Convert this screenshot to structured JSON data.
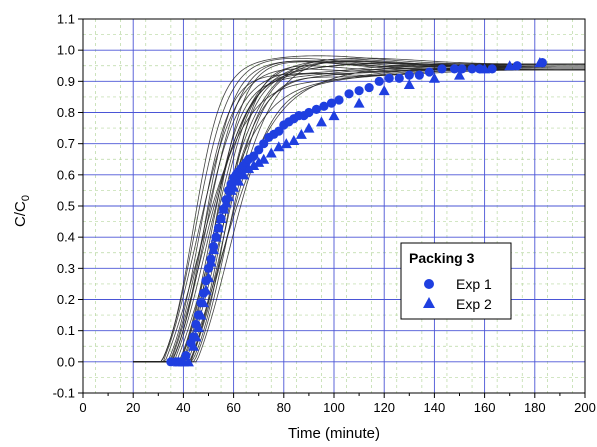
{
  "chart_data": {
    "type": "scatter",
    "title": "",
    "xlabel": "Time (minute)",
    "ylabel_base": "C/C",
    "ylabel_sub": "0",
    "xlim": [
      0,
      200
    ],
    "ylim": [
      -0.1,
      1.1
    ],
    "x_ticks": [
      0,
      20,
      40,
      60,
      80,
      100,
      120,
      140,
      160,
      180,
      200
    ],
    "y_ticks": [
      -0.1,
      0.0,
      0.1,
      0.2,
      0.3,
      0.4,
      0.5,
      0.6,
      0.7,
      0.8,
      0.9,
      1.0,
      1.1
    ],
    "grid": true,
    "legend": {
      "title": "Packing 3",
      "placement": "center-right"
    },
    "colors": {
      "markers": "#1f3fe0",
      "grid_major": "#4a55d6",
      "grid_minor": "#b7d7a0",
      "simulation_lines": "#222222"
    },
    "series": [
      {
        "name": "Exp 1",
        "marker": "circle",
        "x": [
          35,
          37,
          39,
          41,
          43,
          44,
          45,
          46,
          47,
          48,
          49,
          50,
          51,
          52,
          53,
          54,
          55,
          56,
          57,
          58,
          59,
          60,
          61,
          62,
          63,
          64,
          65,
          66,
          68,
          70,
          72,
          74,
          76,
          78,
          80,
          82,
          84,
          86,
          88,
          90,
          93,
          96,
          99,
          102,
          106,
          110,
          114,
          118,
          122,
          126,
          130,
          134,
          138,
          143,
          148,
          151,
          155,
          158,
          163,
          173,
          183
        ],
        "y": [
          0.0,
          0.0,
          0.0,
          0.02,
          0.06,
          0.08,
          0.12,
          0.15,
          0.19,
          0.22,
          0.26,
          0.3,
          0.33,
          0.37,
          0.4,
          0.43,
          0.46,
          0.49,
          0.52,
          0.55,
          0.57,
          0.59,
          0.6,
          0.61,
          0.62,
          0.63,
          0.64,
          0.65,
          0.66,
          0.68,
          0.7,
          0.72,
          0.73,
          0.74,
          0.76,
          0.77,
          0.78,
          0.79,
          0.79,
          0.8,
          0.81,
          0.82,
          0.83,
          0.84,
          0.86,
          0.87,
          0.88,
          0.9,
          0.91,
          0.91,
          0.92,
          0.92,
          0.93,
          0.94,
          0.94,
          0.94,
          0.94,
          0.94,
          0.94,
          0.95,
          0.96
        ]
      },
      {
        "name": "Exp 2",
        "marker": "triangle",
        "x": [
          38,
          40,
          42,
          44,
          45,
          46,
          47,
          48,
          49,
          50,
          51,
          52,
          53,
          54,
          55,
          56,
          57,
          58,
          59,
          60,
          62,
          64,
          66,
          68,
          70,
          72,
          75,
          78,
          81,
          84,
          87,
          90,
          95,
          100,
          110,
          120,
          130,
          140,
          150,
          160,
          170,
          182
        ],
        "y": [
          0.0,
          0.0,
          0.0,
          0.05,
          0.08,
          0.11,
          0.15,
          0.19,
          0.23,
          0.27,
          0.32,
          0.36,
          0.4,
          0.43,
          0.46,
          0.49,
          0.51,
          0.53,
          0.55,
          0.56,
          0.58,
          0.6,
          0.62,
          0.63,
          0.64,
          0.65,
          0.67,
          0.69,
          0.7,
          0.71,
          0.73,
          0.75,
          0.77,
          0.79,
          0.83,
          0.87,
          0.89,
          0.91,
          0.92,
          0.94,
          0.95,
          0.96
        ]
      }
    ],
    "simulation_curves": {
      "count": 24,
      "midpoint_range": [
        44,
        58
      ],
      "steepness_range": [
        0.09,
        0.18
      ],
      "plateau": 0.955
    }
  }
}
